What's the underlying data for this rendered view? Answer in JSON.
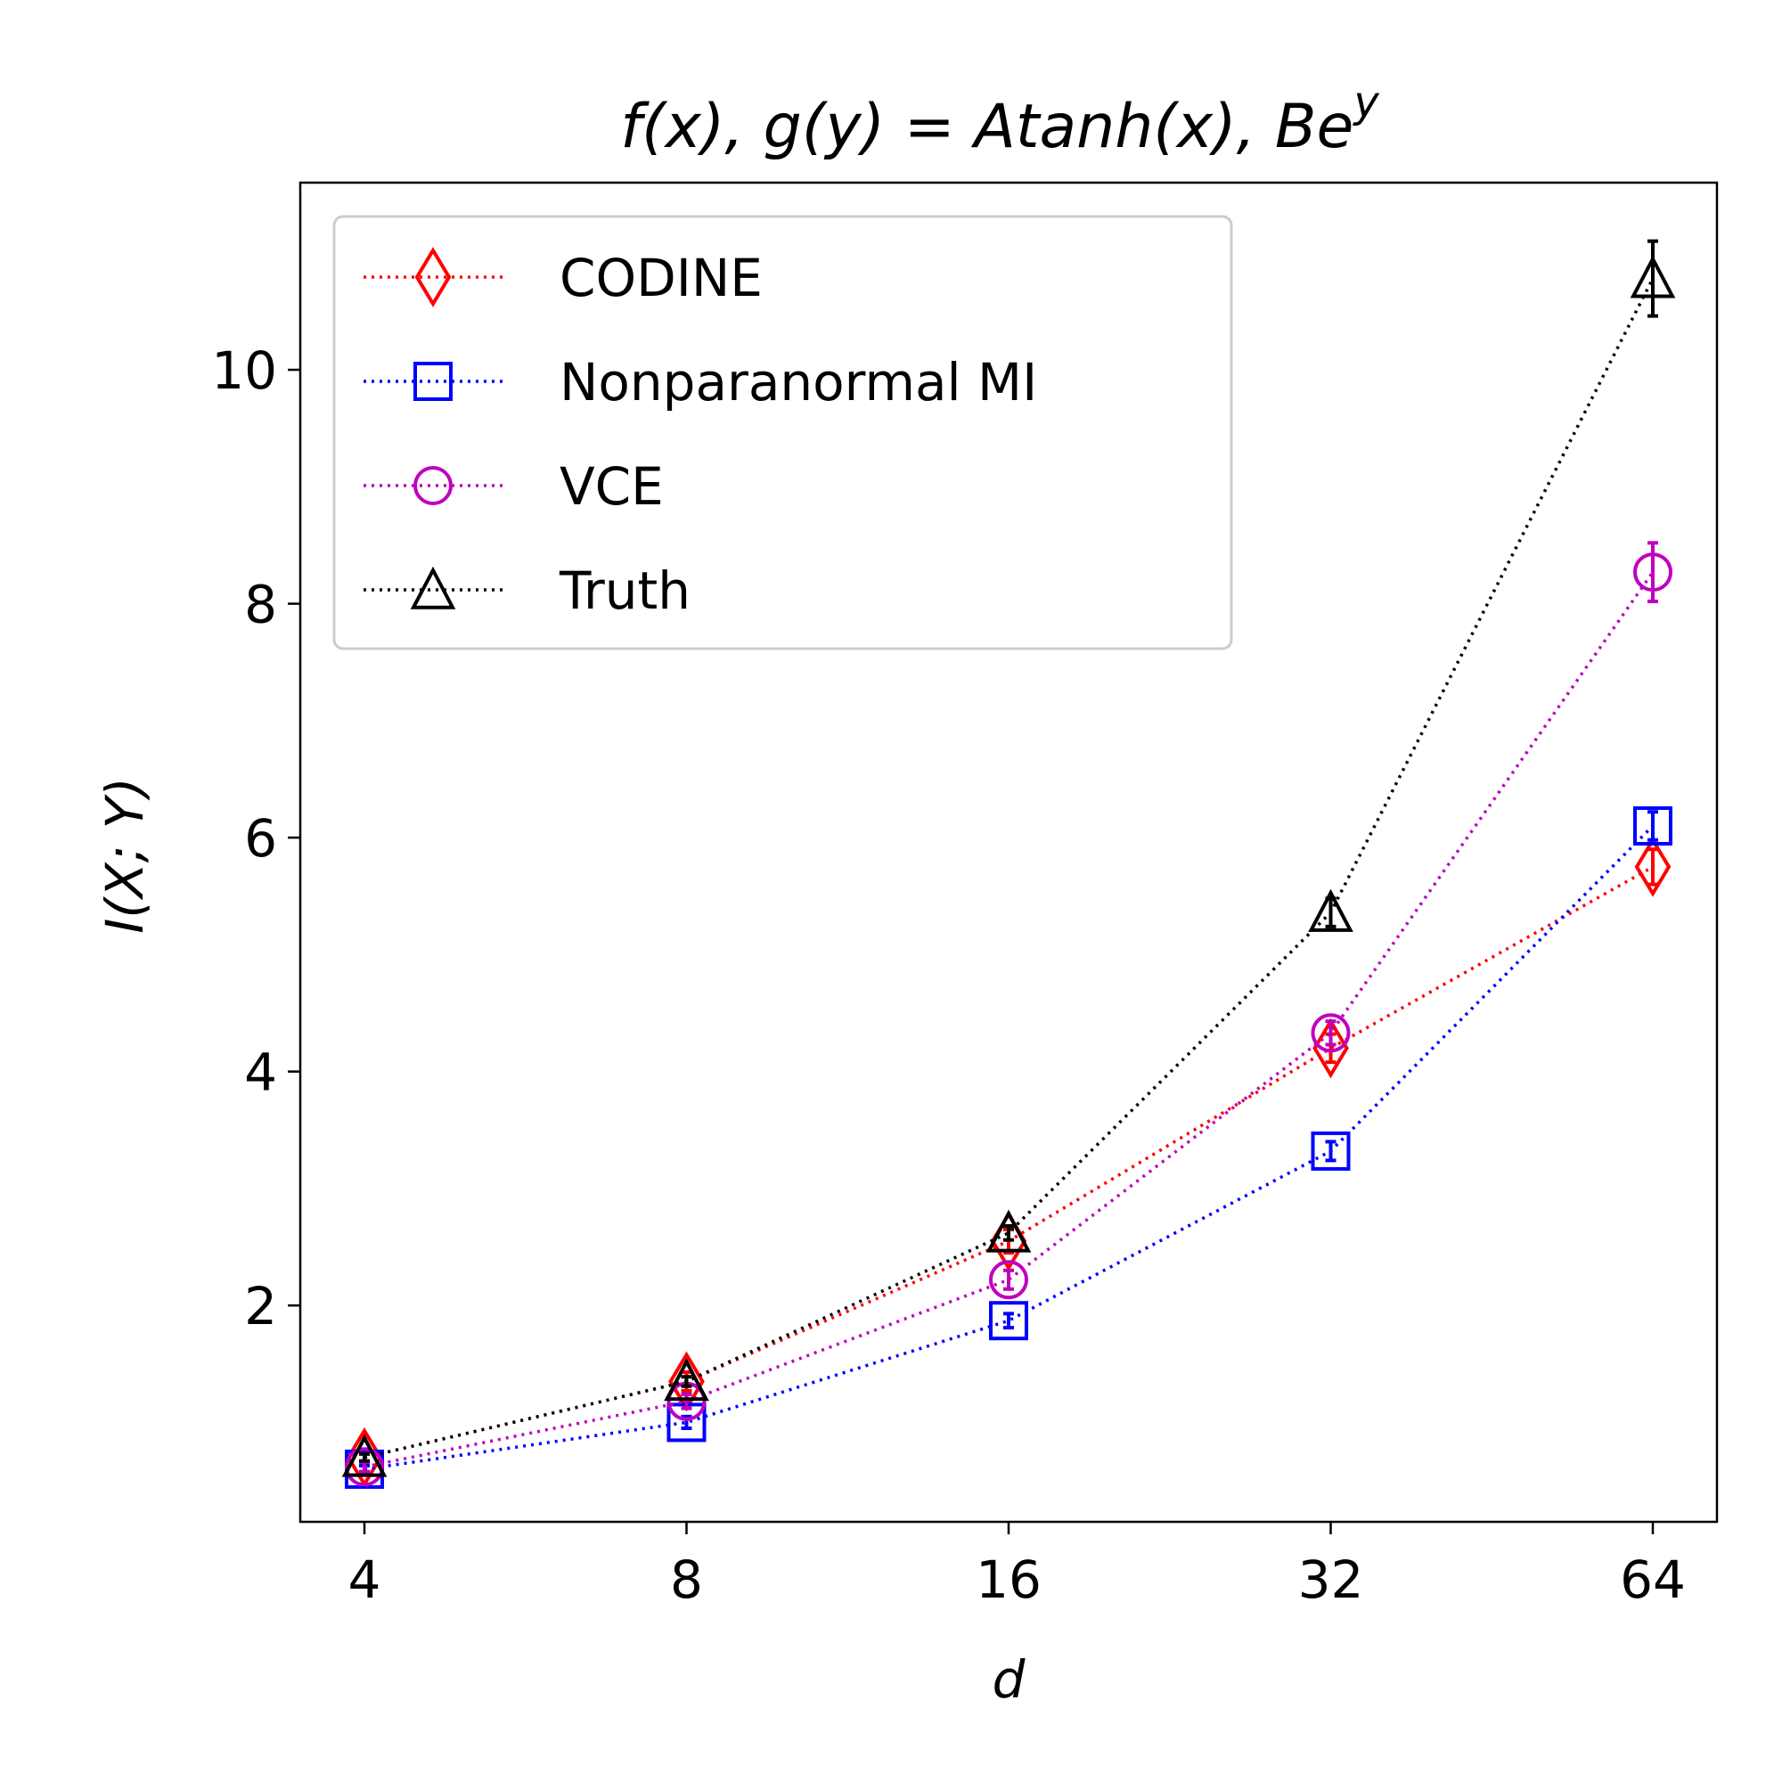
{
  "chart_data": {
    "type": "line",
    "title": "f(x), g(y) = Atanh(x), Be",
    "title_superscript": "y",
    "xlabel": "d",
    "ylabel": "I(X; Y)",
    "x_scale": "log2",
    "x": [
      4,
      8,
      16,
      32,
      64
    ],
    "x_tick_labels": [
      "4",
      "8",
      "16",
      "32",
      "64"
    ],
    "y_ticks": [
      2,
      4,
      6,
      8,
      10
    ],
    "y_tick_labels": [
      "2",
      "4",
      "6",
      "8",
      "10"
    ],
    "ylim": [
      0.15,
      11.6
    ],
    "grid": false,
    "legend_position": "upper-left",
    "series": [
      {
        "name": "CODINE",
        "color": "#ff0000",
        "marker": "thin-diamond",
        "values": [
          0.7,
          1.35,
          2.55,
          4.2,
          5.75
        ],
        "errors": [
          0.05,
          0.08,
          0.1,
          0.12,
          0.15
        ]
      },
      {
        "name": "Nonparanormal MI",
        "color": "#0000ff",
        "marker": "square",
        "values": [
          0.6,
          1.0,
          1.87,
          3.32,
          6.1
        ],
        "errors": [
          0.03,
          0.05,
          0.06,
          0.08,
          0.12
        ]
      },
      {
        "name": "VCE",
        "color": "#bf00bf",
        "marker": "circle",
        "values": [
          0.62,
          1.18,
          2.22,
          4.33,
          8.27
        ],
        "errors": [
          0.04,
          0.06,
          0.08,
          0.1,
          0.25
        ]
      },
      {
        "name": "Truth",
        "color": "#000000",
        "marker": "triangle",
        "values": [
          0.7,
          1.35,
          2.62,
          5.36,
          10.78
        ],
        "errors": [
          0.03,
          0.04,
          0.06,
          0.12,
          0.32
        ]
      }
    ]
  }
}
